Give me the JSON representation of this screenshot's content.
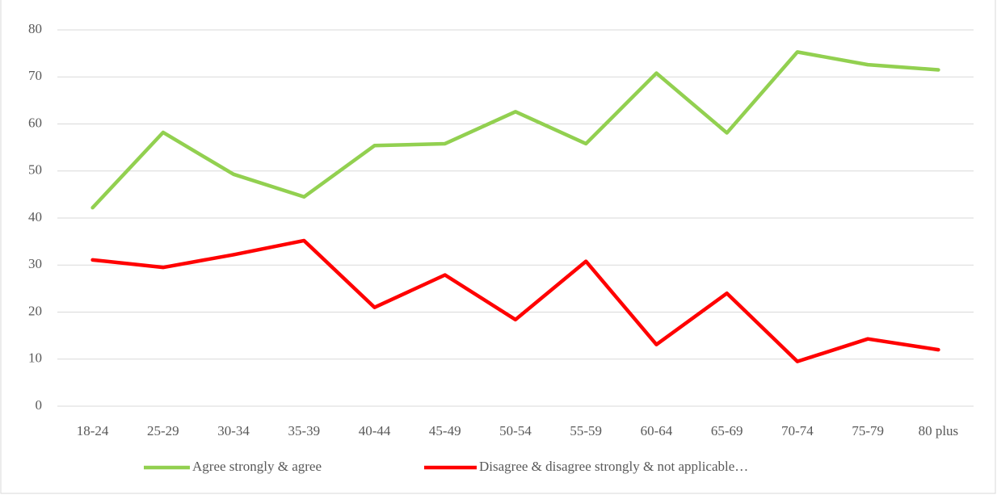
{
  "chart_data": {
    "type": "line",
    "categories": [
      "18-24",
      "25-29",
      "30-34",
      "35-39",
      "40-44",
      "45-49",
      "50-54",
      "55-59",
      "60-64",
      "65-69",
      "70-74",
      "75-79",
      "80 plus"
    ],
    "series": [
      {
        "name": "Agree strongly & agree",
        "color": "#92d050",
        "values": [
          42.2,
          58.2,
          49.3,
          44.5,
          55.4,
          55.8,
          62.6,
          55.8,
          70.8,
          58.1,
          75.3,
          72.6,
          71.5
        ]
      },
      {
        "name": "Disagree & disagree strongly & not applicable…",
        "color": "#ff0000",
        "values": [
          31.1,
          29.5,
          32.2,
          35.2,
          21.0,
          27.9,
          18.4,
          30.8,
          13.1,
          24.0,
          9.5,
          14.3,
          12.0
        ]
      }
    ],
    "ylim": [
      0,
      80
    ],
    "yticks": [
      0,
      10,
      20,
      30,
      40,
      50,
      60,
      70,
      80
    ],
    "grid": true,
    "legend": "bottom"
  }
}
